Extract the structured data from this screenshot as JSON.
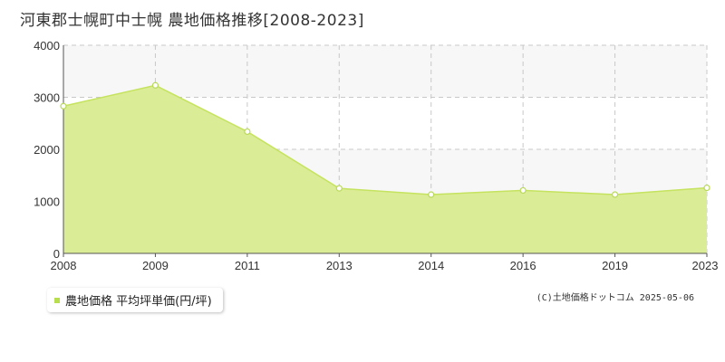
{
  "title": "河東郡士幌町中士幌 農地価格推移[2008-2023]",
  "legend": {
    "label": "農地価格 平均坪単価(円/坪)"
  },
  "copyright": "(C)土地価格ドットコム 2025-05-06",
  "colors": {
    "fill": "#dbec96",
    "line": "#c5e35f",
    "point_stroke": "#b9d95a",
    "grid": "#c8c8c8",
    "band": "#f7f7f7"
  },
  "chart_data": {
    "type": "area",
    "title": "河東郡士幌町中士幌 農地価格推移[2008-2023]",
    "xlabel": "",
    "ylabel": "",
    "categories": [
      "2008",
      "2009",
      "2011",
      "2013",
      "2014",
      "2016",
      "2019",
      "2023"
    ],
    "series": [
      {
        "name": "農地価格 平均坪単価(円/坪)",
        "values": [
          2830,
          3230,
          2340,
          1250,
          1130,
          1210,
          1130,
          1260
        ]
      }
    ],
    "ylim": [
      0,
      4000
    ],
    "yticks": [
      "0",
      "1000",
      "2000",
      "3000",
      "4000"
    ],
    "grid": true,
    "legend": "bottom-left"
  }
}
